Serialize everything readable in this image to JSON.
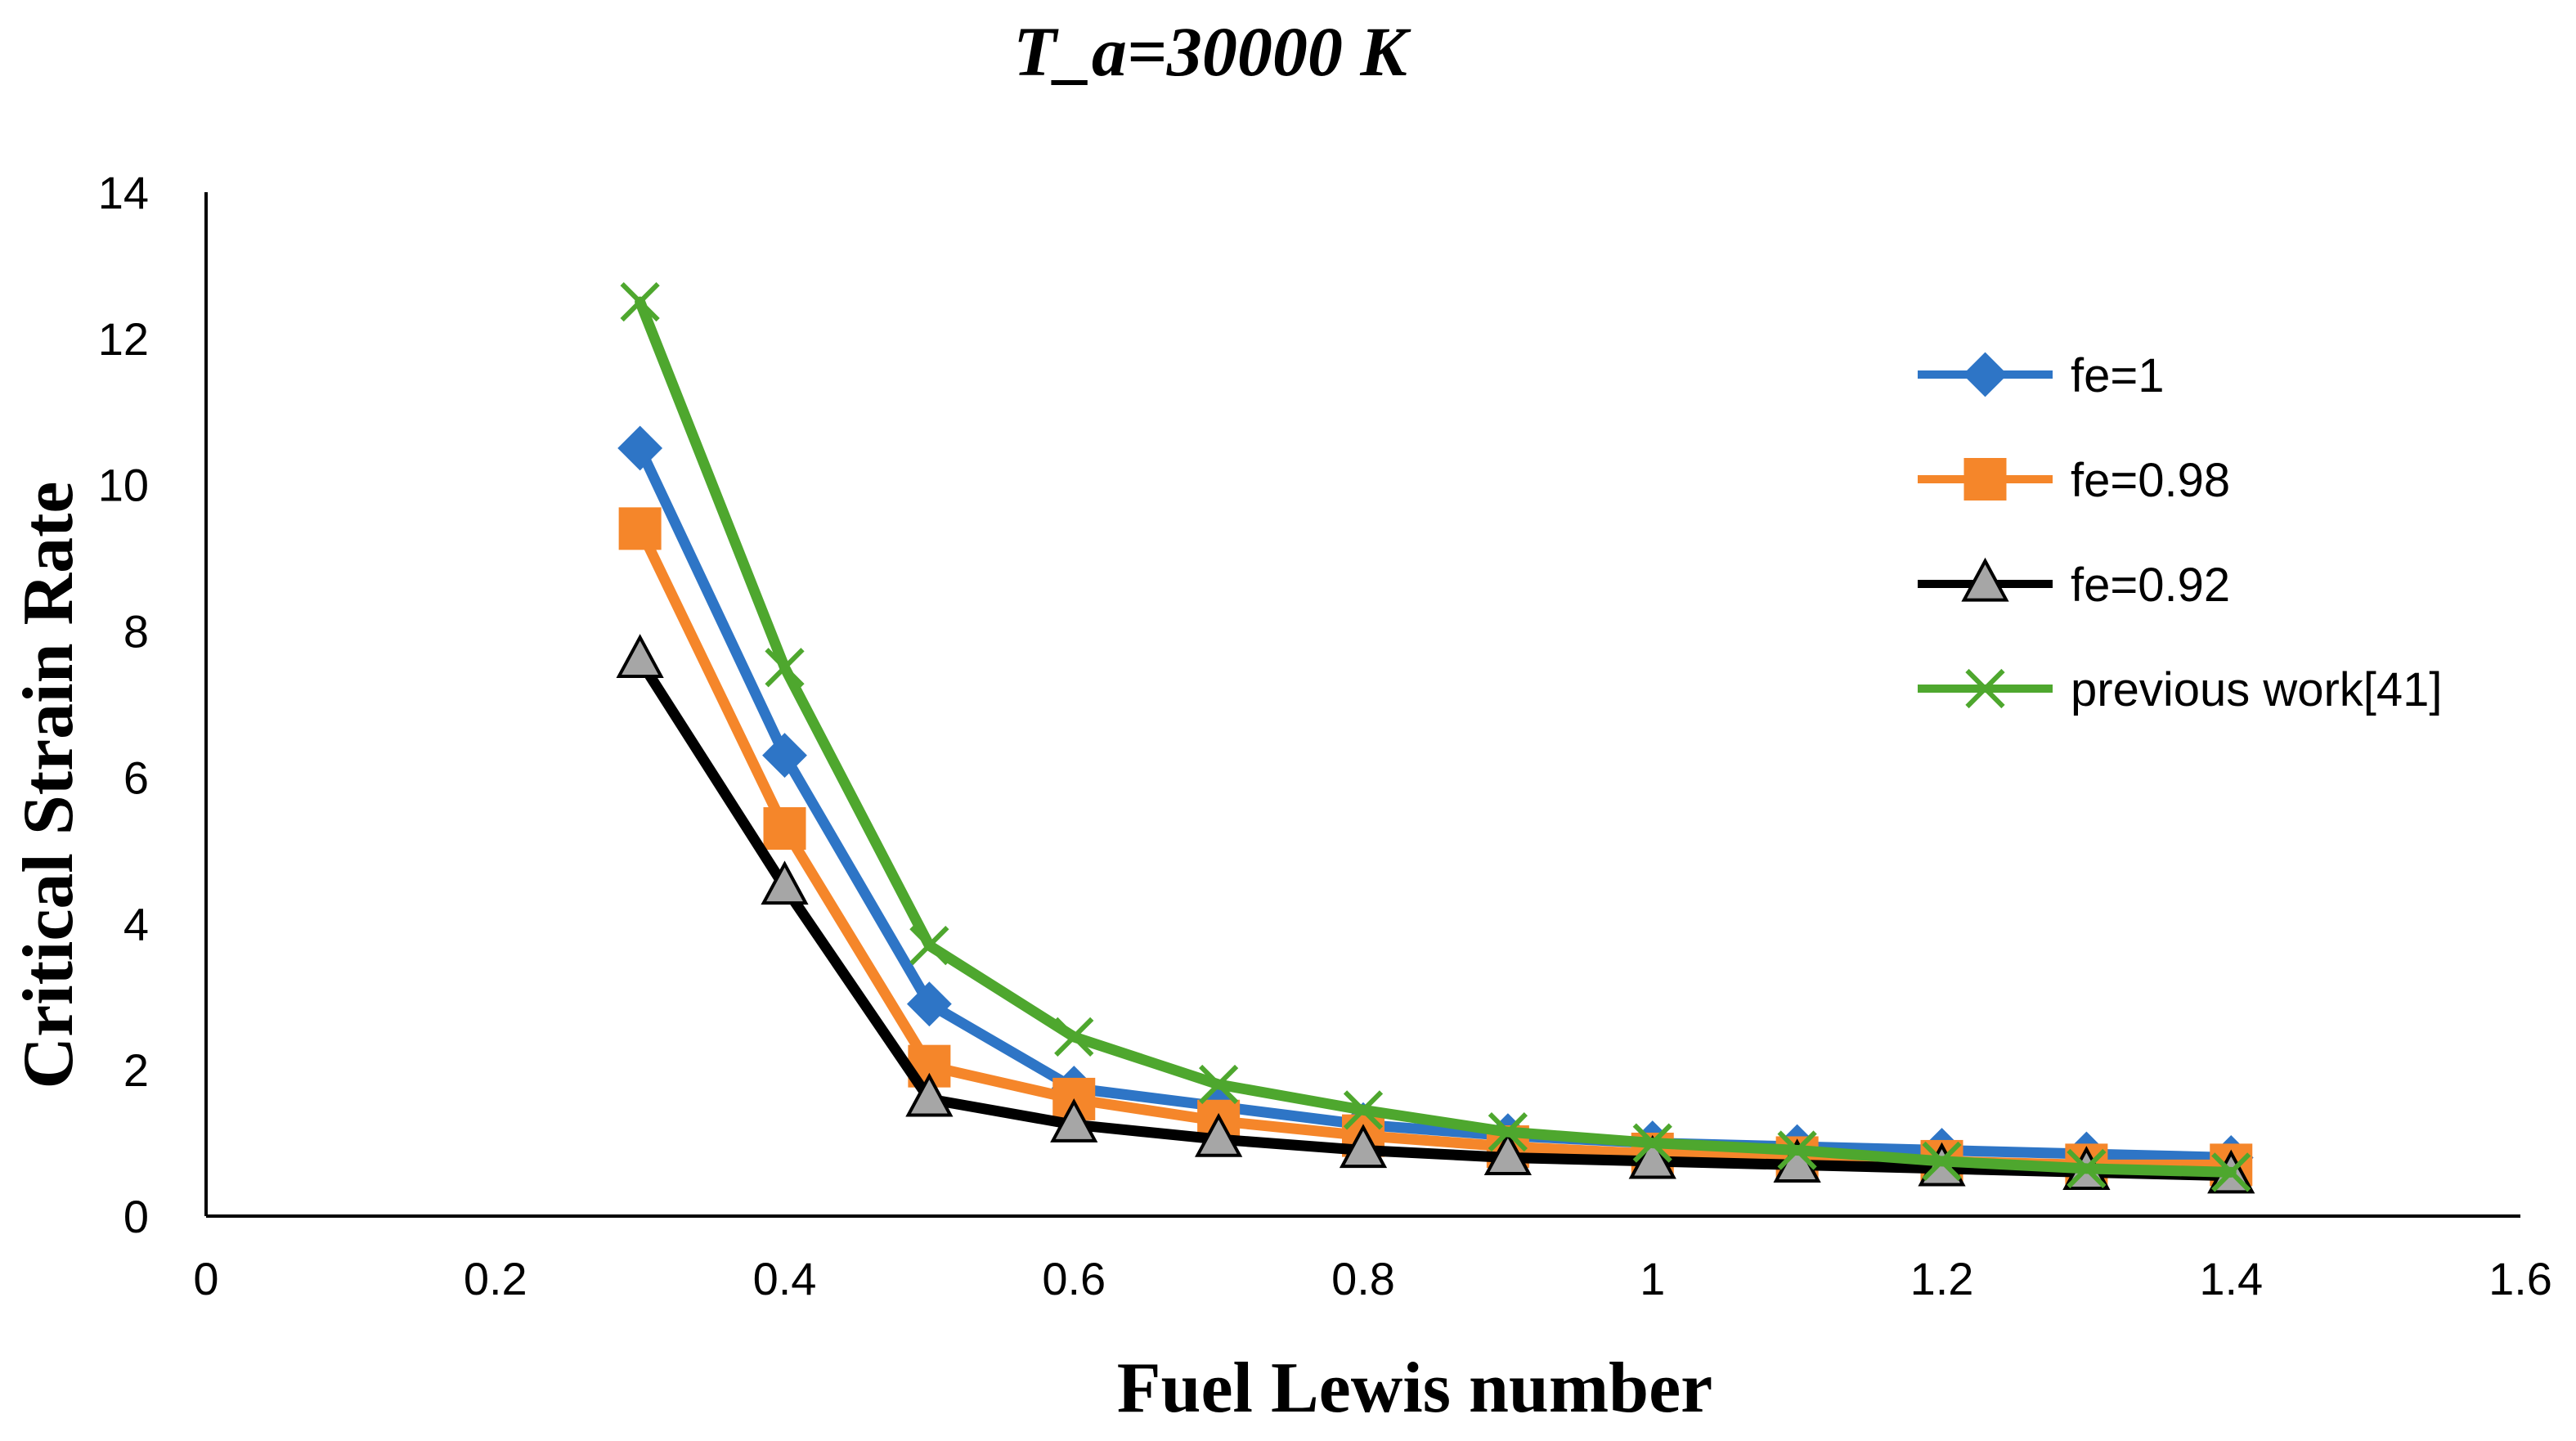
{
  "chart_data": {
    "type": "line",
    "title": "T_a=30000  K",
    "xlabel": "Fuel Lewis number",
    "ylabel": "Critical Strain Rate",
    "xlim": [
      0,
      1.6
    ],
    "ylim": [
      0,
      14
    ],
    "xticks": [
      0,
      0.2,
      0.4,
      0.6,
      0.8,
      1,
      1.2,
      1.4,
      1.6
    ],
    "xtick_labels": [
      "0",
      "0.2",
      "0.4",
      "0.6",
      "0.8",
      "1",
      "1.2",
      "1.4",
      "1.6"
    ],
    "yticks": [
      0,
      2,
      4,
      6,
      8,
      10,
      12,
      14
    ],
    "ytick_labels": [
      "0",
      "2",
      "4",
      "6",
      "8",
      "10",
      "12",
      "14"
    ],
    "grid": false,
    "legend_position": "right",
    "x": [
      0.3,
      0.4,
      0.5,
      0.6,
      0.7,
      0.8,
      0.9,
      1.0,
      1.1,
      1.2,
      1.3,
      1.4
    ],
    "series": [
      {
        "name": "fe=1",
        "color": "#2E75C6",
        "marker": "diamond",
        "values": [
          10.5,
          6.3,
          2.9,
          1.75,
          1.5,
          1.25,
          1.1,
          1.0,
          0.95,
          0.9,
          0.85,
          0.8
        ]
      },
      {
        "name": "fe=0.98",
        "color": "#F5862A",
        "marker": "square",
        "values": [
          9.4,
          5.3,
          2.05,
          1.6,
          1.3,
          1.1,
          0.95,
          0.85,
          0.8,
          0.75,
          0.7,
          0.7
        ]
      },
      {
        "name": "fe=0.92",
        "color": "#000000",
        "marker_fill": "#A6A6A6",
        "marker": "triangle",
        "values": [
          7.6,
          4.5,
          1.6,
          1.25,
          1.05,
          0.9,
          0.8,
          0.75,
          0.7,
          0.65,
          0.6,
          0.55
        ]
      },
      {
        "name": "previous work[41]",
        "color": "#4EA72E",
        "marker": "x",
        "values": [
          12.5,
          7.5,
          3.7,
          2.45,
          1.8,
          1.45,
          1.15,
          1.0,
          0.9,
          0.75,
          0.65,
          0.6
        ]
      }
    ]
  }
}
